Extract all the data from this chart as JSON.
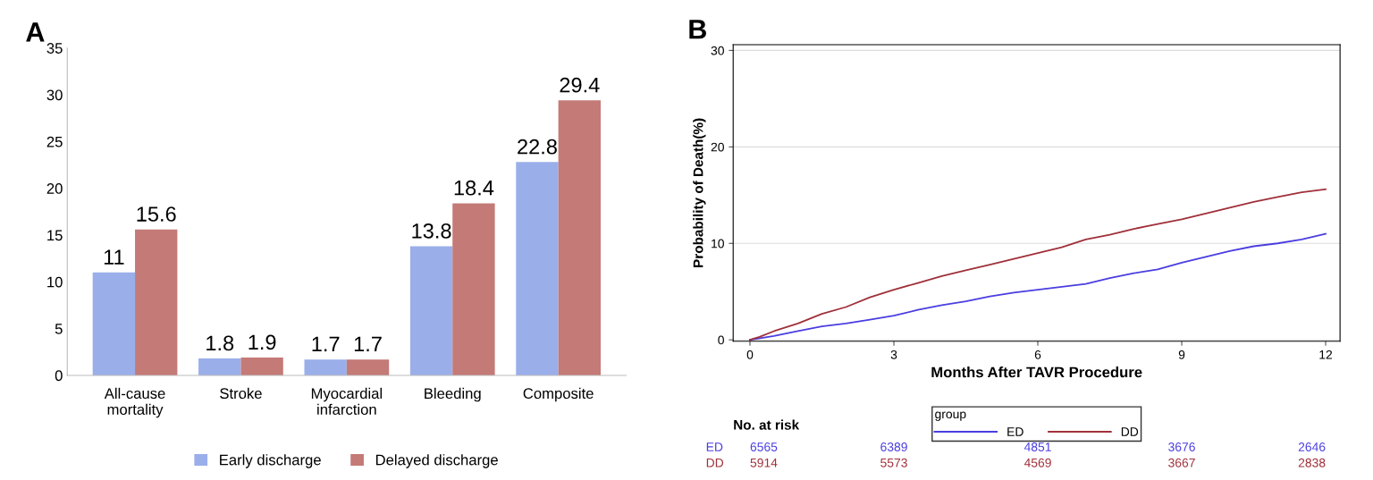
{
  "chart_data": [
    {
      "type": "bar",
      "title": "A",
      "categories": [
        "All-cause\nmortality",
        "Stroke",
        "Myocardial\ninfarction",
        "Bleeding",
        "Composite"
      ],
      "series": [
        {
          "name": "Early discharge",
          "color": "#9aaeea",
          "values": [
            11,
            1.8,
            1.7,
            13.8,
            22.8
          ]
        },
        {
          "name": "Delayed discharge",
          "color": "#c47a76",
          "values": [
            15.6,
            1.9,
            1.7,
            18.4,
            29.4
          ]
        }
      ],
      "ylim": [
        0,
        35
      ],
      "yticks": [
        0,
        5,
        10,
        15,
        20,
        25,
        30,
        35
      ],
      "grid": false,
      "data_labels": true,
      "legend": "bottom"
    },
    {
      "type": "line",
      "title": "B",
      "xlabel": "Months After TAVR Procedure",
      "ylabel": "Probability of Death(%)",
      "legend_title": "group",
      "series": [
        {
          "name": "ED",
          "color": "#4a3ee0",
          "x": [
            0,
            0.5,
            1,
            1.5,
            2,
            2.5,
            3,
            3.5,
            4,
            4.5,
            5,
            5.5,
            6,
            6.5,
            7,
            7.5,
            8,
            8.5,
            9,
            9.5,
            10,
            10.5,
            11,
            11.5,
            12
          ],
          "values": [
            0,
            0.4,
            0.9,
            1.4,
            1.7,
            2.1,
            2.5,
            3.1,
            3.6,
            4.0,
            4.5,
            4.9,
            5.2,
            5.5,
            5.8,
            6.4,
            6.9,
            7.3,
            8.0,
            8.6,
            9.2,
            9.7,
            10.0,
            10.4,
            11.0
          ]
        },
        {
          "name": "DD",
          "color": "#a0303a",
          "x": [
            0,
            0.2,
            0.5,
            1,
            1.5,
            2,
            2.5,
            3,
            3.5,
            4,
            4.5,
            5,
            5.5,
            6,
            6.5,
            7,
            7.5,
            8,
            8.5,
            9,
            9.5,
            10,
            10.5,
            11,
            11.5,
            12
          ],
          "values": [
            0,
            0.3,
            0.9,
            1.7,
            2.7,
            3.4,
            4.4,
            5.2,
            5.9,
            6.6,
            7.2,
            7.8,
            8.4,
            9.0,
            9.6,
            10.4,
            10.9,
            11.5,
            12.0,
            12.5,
            13.1,
            13.7,
            14.3,
            14.8,
            15.3,
            15.6
          ]
        }
      ],
      "xlim": [
        -0.35,
        12.3
      ],
      "xticks": [
        0,
        3,
        6,
        9,
        12
      ],
      "ylim": [
        -0.15,
        30.6
      ],
      "yticks": [
        0,
        10,
        20,
        30
      ],
      "grid": "y",
      "legend": "bottom",
      "annotations": [
        "No. at risk",
        "ED",
        "6565",
        "6389",
        "4851",
        "3676",
        "2646",
        "DD",
        "5914",
        "5573",
        "4569",
        "3667",
        "2838"
      ]
    }
  ]
}
